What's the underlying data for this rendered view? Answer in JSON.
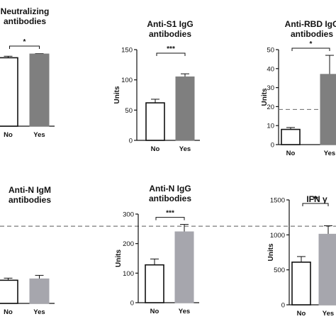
{
  "chart_data": [
    {
      "type": "bar",
      "title": [
        "Neutralizing",
        "antibodies"
      ],
      "ylabel": "",
      "categories": [
        "No",
        "Yes"
      ],
      "values": [
        0.9,
        0.95
      ],
      "errors": [
        0.02,
        0.005
      ],
      "ylim": [
        0,
        1.1
      ],
      "yticks": [],
      "significance": "*",
      "threshold": null,
      "colors": [
        "#ffffff",
        "#7f7f7f"
      ]
    },
    {
      "type": "bar",
      "title": [
        "Anti-S1 IgG",
        "antibodies"
      ],
      "ylabel": "Units",
      "categories": [
        "No",
        "Yes"
      ],
      "values": [
        62,
        105
      ],
      "errors": [
        6,
        5
      ],
      "ylim": [
        0,
        150
      ],
      "yticks": [
        0,
        50,
        100,
        150
      ],
      "significance": "***",
      "threshold": null,
      "colors": [
        "#ffffff",
        "#7f7f7f"
      ]
    },
    {
      "type": "bar",
      "title": [
        "Anti-RBD IgG",
        "antibodies"
      ],
      "ylabel": "Units",
      "categories": [
        "No",
        "Yes"
      ],
      "values": [
        8,
        37
      ],
      "errors": [
        1,
        10
      ],
      "ylim": [
        0,
        50
      ],
      "yticks": [
        0,
        10,
        20,
        30,
        40,
        50
      ],
      "significance": "*",
      "threshold": 18.5,
      "colors": [
        "#ffffff",
        "#7f7f7f"
      ]
    },
    {
      "type": "bar",
      "title": [
        "Anti-N IgM",
        "antibodies"
      ],
      "ylabel": "",
      "categories": [
        "No",
        "Yes"
      ],
      "values": [
        0.33,
        0.35
      ],
      "errors": [
        0.03,
        0.05
      ],
      "ylim": [
        0,
        1.9
      ],
      "yticks": [],
      "significance": "",
      "threshold": 1.1,
      "colors": [
        "#ffffff",
        "#a6a6ad"
      ]
    },
    {
      "type": "bar",
      "title": [
        "Anti-N IgG",
        "antibodies"
      ],
      "ylabel": "Units",
      "categories": [
        "No",
        "Yes"
      ],
      "values": [
        128,
        240
      ],
      "errors": [
        20,
        25
      ],
      "ylim": [
        0,
        300
      ],
      "yticks": [
        0,
        100,
        200,
        300
      ],
      "significance": "***",
      "threshold": null,
      "colors": [
        "#ffffff",
        "#a6a6ad"
      ]
    },
    {
      "type": "bar",
      "title": [
        "IFN γ"
      ],
      "ylabel": "Units",
      "categories": [
        "No",
        "Yes"
      ],
      "values": [
        610,
        1010
      ],
      "errors": [
        80,
        120
      ],
      "ylim": [
        0,
        1500
      ],
      "yticks": [
        0,
        500,
        1000,
        1500
      ],
      "significance": "**",
      "threshold": null,
      "colors": [
        "#ffffff",
        "#a6a6ad"
      ]
    }
  ]
}
